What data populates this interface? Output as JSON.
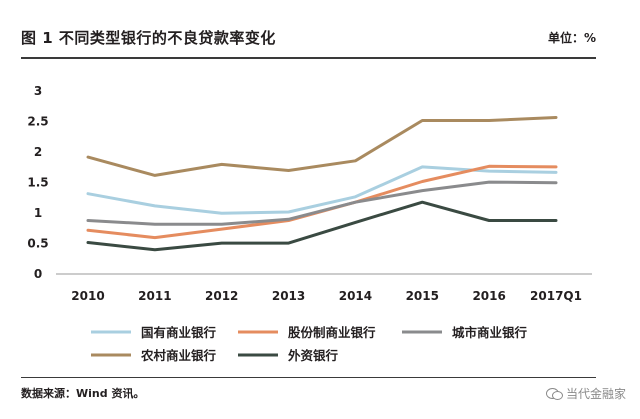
{
  "header": {
    "title": "图 1   不同类型银行的不良贷款率变化",
    "unit": "单位：%"
  },
  "footer": {
    "source": "数据来源：Wind 资讯。",
    "watermark": "当代金融家"
  },
  "chart_data": {
    "type": "line",
    "categories": [
      "2010",
      "2011",
      "2012",
      "2013",
      "2014",
      "2015",
      "2016",
      "2017Q1"
    ],
    "yticks": [
      "0",
      "0.5",
      "1",
      "1.5",
      "2",
      "2.5",
      "3"
    ],
    "ylim": [
      0,
      3
    ],
    "grid": false,
    "legend_position": "bottom",
    "series": [
      {
        "name": "国有商业银行",
        "color": "#a9cfe0",
        "values": [
          1.3,
          1.1,
          0.98,
          1.0,
          1.25,
          1.74,
          1.67,
          1.65
        ]
      },
      {
        "name": "股份制商业银行",
        "color": "#e58c5f",
        "values": [
          0.7,
          0.58,
          0.72,
          0.86,
          1.16,
          1.5,
          1.75,
          1.74
        ]
      },
      {
        "name": "城市商业银行",
        "color": "#8a8b8d",
        "values": [
          0.86,
          0.8,
          0.8,
          0.88,
          1.16,
          1.35,
          1.49,
          1.48
        ]
      },
      {
        "name": "农村商业银行",
        "color": "#a98a5f",
        "values": [
          1.9,
          1.6,
          1.78,
          1.68,
          1.84,
          2.5,
          2.5,
          2.55
        ]
      },
      {
        "name": "外资银行",
        "color": "#3a4a42",
        "values": [
          0.5,
          0.38,
          0.49,
          0.49,
          0.83,
          1.16,
          0.86,
          0.86
        ]
      }
    ]
  }
}
